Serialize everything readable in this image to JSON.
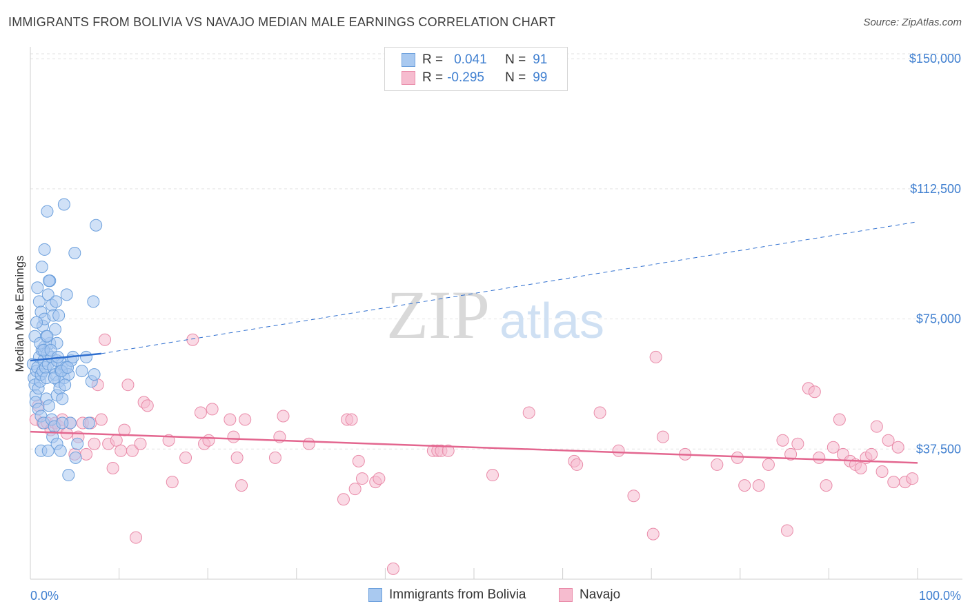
{
  "title": "IMMIGRANTS FROM BOLIVIA VS NAVAJO MEDIAN MALE EARNINGS CORRELATION CHART",
  "source": "Source: ZipAtlas.com",
  "watermark": {
    "zip": "ZIP",
    "atlas": "atlas"
  },
  "legend": {
    "rows": [
      {
        "r_label": "R =",
        "r_value": "0.041",
        "n_label": "N =",
        "n_value": "91"
      },
      {
        "r_label": "R =",
        "r_value": "-0.295",
        "n_label": "N =",
        "n_value": "99"
      }
    ]
  },
  "bottom_legend": {
    "series1": "Immigrants from Bolivia",
    "series2": "Navajo"
  },
  "colors": {
    "blue_fill": "#a9c9f0",
    "blue_stroke": "#6b9fdc",
    "blue_line": "#2f6fcf",
    "pink_fill": "#f6bccf",
    "pink_stroke": "#e98aa8",
    "pink_line": "#e3668f",
    "accent_text": "#3f7fd0",
    "grid": "#e2e2e2"
  },
  "chart_data": {
    "type": "scatter",
    "title": "IMMIGRANTS FROM BOLIVIA VS NAVAJO MEDIAN MALE EARNINGS CORRELATION CHART",
    "xlabel": "",
    "ylabel": "Median Male Earnings",
    "xlim": [
      0,
      100
    ],
    "ylim": [
      0,
      155000
    ],
    "x_tick_labels": [
      "0.0%",
      "100.0%"
    ],
    "y_ticks": [
      37500,
      75000,
      112500,
      150000
    ],
    "y_tick_labels": [
      "$37,500",
      "$75,000",
      "$112,500",
      "$150,000"
    ],
    "series": [
      {
        "name": "Immigrants from Bolivia",
        "r": 0.041,
        "n": 91,
        "trend": {
          "solid": [
            [
              0,
              63000
            ],
            [
              8,
              65000
            ]
          ],
          "dashed": [
            [
              8,
              65000
            ],
            [
              100,
              103000
            ]
          ]
        },
        "points": [
          [
            0.3,
            62
          ],
          [
            0.4,
            58
          ],
          [
            0.5,
            56
          ],
          [
            0.6,
            53
          ],
          [
            0.7,
            60
          ],
          [
            0.8,
            61
          ],
          [
            0.9,
            55
          ],
          [
            1.0,
            64
          ],
          [
            1.1,
            57
          ],
          [
            1.2,
            59
          ],
          [
            1.3,
            66
          ],
          [
            1.4,
            60
          ],
          [
            1.5,
            63
          ],
          [
            1.6,
            67
          ],
          [
            1.7,
            61
          ],
          [
            1.8,
            58
          ],
          [
            1.9,
            65
          ],
          [
            2.0,
            62
          ],
          [
            2.2,
            68
          ],
          [
            2.4,
            64
          ],
          [
            2.6,
            61
          ],
          [
            2.8,
            59
          ],
          [
            3.0,
            63
          ],
          [
            3.2,
            57
          ],
          [
            3.4,
            60
          ],
          [
            3.6,
            62
          ],
          [
            3.8,
            58
          ],
          [
            4.0,
            61
          ],
          [
            4.3,
            59
          ],
          [
            4.6,
            63
          ],
          [
            0.8,
            84
          ],
          [
            1.0,
            80
          ],
          [
            1.2,
            77
          ],
          [
            1.4,
            73
          ],
          [
            1.6,
            75
          ],
          [
            1.8,
            70
          ],
          [
            2.0,
            82
          ],
          [
            2.2,
            86
          ],
          [
            2.4,
            79
          ],
          [
            2.6,
            76
          ],
          [
            2.8,
            72
          ],
          [
            3.0,
            68
          ],
          [
            1.3,
            90
          ],
          [
            1.6,
            95
          ],
          [
            2.1,
            86
          ],
          [
            2.9,
            80
          ],
          [
            3.2,
            76
          ],
          [
            4.1,
            82
          ],
          [
            5.0,
            94
          ],
          [
            7.1,
            80
          ],
          [
            1.9,
            106
          ],
          [
            3.8,
            108
          ],
          [
            7.4,
            102
          ],
          [
            0.6,
            51
          ],
          [
            0.9,
            49
          ],
          [
            1.2,
            47
          ],
          [
            1.5,
            45
          ],
          [
            1.8,
            52
          ],
          [
            2.1,
            50
          ],
          [
            2.4,
            46
          ],
          [
            2.7,
            44
          ],
          [
            3.0,
            53
          ],
          [
            3.3,
            55
          ],
          [
            3.6,
            52
          ],
          [
            4.5,
            45
          ],
          [
            1.2,
            37
          ],
          [
            2.0,
            37
          ],
          [
            2.5,
            41
          ],
          [
            3.0,
            39
          ],
          [
            3.4,
            37
          ],
          [
            3.6,
            45
          ],
          [
            5.1,
            35
          ],
          [
            4.3,
            30
          ],
          [
            5.3,
            39
          ],
          [
            5.8,
            60
          ],
          [
            6.3,
            64
          ],
          [
            6.9,
            57
          ],
          [
            7.2,
            59
          ],
          [
            6.6,
            45
          ],
          [
            0.5,
            70
          ],
          [
            0.7,
            74
          ],
          [
            1.1,
            68
          ],
          [
            1.5,
            66
          ],
          [
            1.9,
            70
          ],
          [
            2.3,
            66
          ],
          [
            2.7,
            58
          ],
          [
            3.1,
            64
          ],
          [
            3.5,
            60
          ],
          [
            3.9,
            56
          ],
          [
            4.2,
            61
          ],
          [
            4.8,
            64
          ]
        ]
      },
      {
        "name": "Navajo",
        "r": -0.295,
        "n": 99,
        "trend": {
          "solid": [
            [
              0,
              42500
            ],
            [
              100,
              33500
            ]
          ]
        },
        "points": [
          [
            0.6,
            46
          ],
          [
            0.9,
            50
          ],
          [
            1.4,
            45
          ],
          [
            1.9,
            45
          ],
          [
            2.3,
            43
          ],
          [
            2.8,
            45
          ],
          [
            3.2,
            44
          ],
          [
            3.6,
            46
          ],
          [
            4.1,
            42
          ],
          [
            4.5,
            45
          ],
          [
            5.0,
            36
          ],
          [
            5.4,
            41
          ],
          [
            5.9,
            45
          ],
          [
            6.3,
            36
          ],
          [
            6.8,
            45
          ],
          [
            7.2,
            39
          ],
          [
            7.6,
            56
          ],
          [
            8.0,
            46
          ],
          [
            8.4,
            69
          ],
          [
            8.8,
            39
          ],
          [
            9.3,
            32
          ],
          [
            9.7,
            40
          ],
          [
            10.2,
            37
          ],
          [
            10.6,
            43
          ],
          [
            11.0,
            56
          ],
          [
            11.5,
            37
          ],
          [
            11.9,
            12
          ],
          [
            12.4,
            39
          ],
          [
            12.8,
            51
          ],
          [
            13.2,
            50
          ],
          [
            15.6,
            40
          ],
          [
            16.0,
            28
          ],
          [
            17.5,
            35
          ],
          [
            18.3,
            69
          ],
          [
            19.2,
            48
          ],
          [
            19.6,
            39
          ],
          [
            20.1,
            40
          ],
          [
            20.5,
            49
          ],
          [
            22.5,
            46
          ],
          [
            22.9,
            41
          ],
          [
            23.3,
            35
          ],
          [
            23.8,
            27
          ],
          [
            24.2,
            46
          ],
          [
            27.6,
            35
          ],
          [
            28.1,
            41
          ],
          [
            28.5,
            47
          ],
          [
            31.4,
            39
          ],
          [
            35.3,
            23
          ],
          [
            35.7,
            46
          ],
          [
            36.2,
            46
          ],
          [
            36.6,
            26
          ],
          [
            37.0,
            34
          ],
          [
            37.4,
            29
          ],
          [
            38.9,
            28
          ],
          [
            39.3,
            29
          ],
          [
            40.9,
            3
          ],
          [
            45.4,
            37
          ],
          [
            45.9,
            37
          ],
          [
            46.3,
            37
          ],
          [
            47.1,
            37
          ],
          [
            52.1,
            30
          ],
          [
            56.2,
            48
          ],
          [
            61.3,
            34
          ],
          [
            61.6,
            33
          ],
          [
            64.2,
            48
          ],
          [
            66.3,
            37
          ],
          [
            68.0,
            24
          ],
          [
            70.2,
            13
          ],
          [
            70.5,
            64
          ],
          [
            71.3,
            41
          ],
          [
            73.8,
            36
          ],
          [
            77.4,
            33
          ],
          [
            79.7,
            35
          ],
          [
            80.5,
            27
          ],
          [
            82.1,
            27
          ],
          [
            83.2,
            33
          ],
          [
            84.8,
            40
          ],
          [
            85.3,
            14
          ],
          [
            85.7,
            36
          ],
          [
            86.5,
            39
          ],
          [
            87.7,
            55
          ],
          [
            88.4,
            54
          ],
          [
            88.9,
            35
          ],
          [
            89.7,
            27
          ],
          [
            90.5,
            38
          ],
          [
            91.2,
            46
          ],
          [
            91.6,
            36
          ],
          [
            92.4,
            34
          ],
          [
            93.0,
            33
          ],
          [
            93.6,
            32
          ],
          [
            94.2,
            35
          ],
          [
            94.8,
            36
          ],
          [
            95.4,
            44
          ],
          [
            96.0,
            31
          ],
          [
            96.7,
            40
          ],
          [
            97.3,
            28
          ],
          [
            97.8,
            38
          ],
          [
            98.6,
            28
          ],
          [
            99.4,
            29
          ]
        ]
      }
    ]
  }
}
